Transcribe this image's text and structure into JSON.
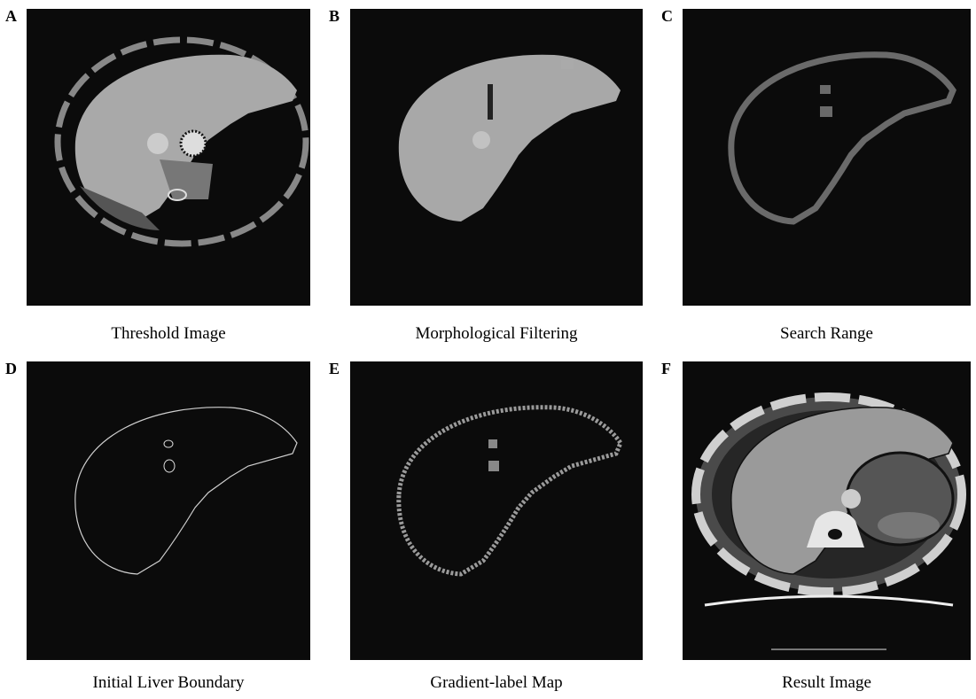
{
  "panels": [
    {
      "letter": "A",
      "caption": "Threshold Image"
    },
    {
      "letter": "B",
      "caption": "Morphological Filtering"
    },
    {
      "letter": "C",
      "caption": "Search Range"
    },
    {
      "letter": "D",
      "caption": "Initial Liver Boundary"
    },
    {
      "letter": "E",
      "caption": "Gradient-label Map"
    },
    {
      "letter": "F",
      "caption": "Result Image"
    }
  ]
}
